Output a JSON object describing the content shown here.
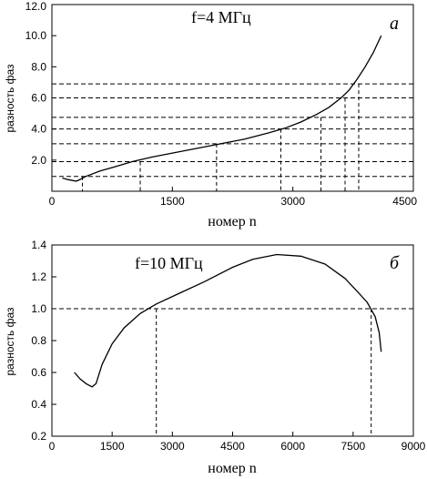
{
  "chart_data": [
    {
      "type": "line",
      "panel": "a",
      "annotation": "f=4 МГц",
      "xlabel": "номер n",
      "ylabel": "разность фаз",
      "xlim": [
        0,
        4500
      ],
      "ylim": [
        0.0,
        12.0
      ],
      "xticks": [
        0,
        1500,
        3000,
        4500
      ],
      "yticks": [
        2.0,
        4.0,
        6.0,
        8.0,
        10.0,
        12.0
      ],
      "ytick_labels": [
        "2.0",
        "4.0",
        "6.0",
        "8.0",
        "10.0",
        "12.0"
      ],
      "grid": false,
      "series": [
        {
          "x": [
            130,
            200,
            300,
            330,
            420,
            600,
            800,
            1000,
            1250,
            1500,
            1800,
            2100,
            2400,
            2700,
            2900,
            3100,
            3300,
            3450,
            3600,
            3700,
            3800,
            3900,
            4000,
            4100
          ],
          "y": [
            0.85,
            0.75,
            0.65,
            0.7,
            0.95,
            1.3,
            1.6,
            1.9,
            2.2,
            2.45,
            2.75,
            3.05,
            3.35,
            3.75,
            4.05,
            4.45,
            4.95,
            5.4,
            6.0,
            6.5,
            7.2,
            8.0,
            8.9,
            10.0
          ]
        }
      ],
      "h_guides": [
        0.95,
        1.9,
        3.05,
        4.0,
        4.75,
        6.0,
        6.9
      ],
      "v_guides": [
        {
          "x": 380,
          "y": 0.95
        },
        {
          "x": 1100,
          "y": 1.9
        },
        {
          "x": 2050,
          "y": 3.05
        },
        {
          "x": 2850,
          "y": 4.0
        },
        {
          "x": 3350,
          "y": 4.75
        },
        {
          "x": 3650,
          "y": 6.0
        },
        {
          "x": 3820,
          "y": 6.9
        }
      ]
    },
    {
      "type": "line",
      "panel": "б",
      "annotation": "f=10 МГц",
      "xlabel": "номер n",
      "ylabel": "разность фаз",
      "xlim": [
        0,
        9000
      ],
      "ylim": [
        0.2,
        1.4
      ],
      "xticks": [
        0,
        1500,
        3000,
        4500,
        6000,
        7500,
        9000
      ],
      "yticks": [
        0.2,
        0.4,
        0.6,
        0.8,
        1.0,
        1.2,
        1.4
      ],
      "ytick_labels": [
        "0.2",
        "0.4",
        "0.6",
        "0.8",
        "1.0",
        "1.2",
        "1.4"
      ],
      "grid": false,
      "series": [
        {
          "x": [
            560,
            700,
            850,
            1000,
            1100,
            1250,
            1500,
            1800,
            2200,
            2600,
            3200,
            3800,
            4500,
            5000,
            5600,
            6200,
            6800,
            7300,
            7600,
            7850,
            8050,
            8150,
            8200
          ],
          "y": [
            0.6,
            0.56,
            0.53,
            0.51,
            0.53,
            0.65,
            0.78,
            0.88,
            0.97,
            1.03,
            1.1,
            1.17,
            1.26,
            1.31,
            1.34,
            1.33,
            1.28,
            1.19,
            1.11,
            1.04,
            0.95,
            0.85,
            0.73
          ]
        }
      ],
      "h_guides": [
        1.0
      ],
      "v_guides": [
        {
          "x": 2600,
          "y": 1.0
        },
        {
          "x": 7950,
          "y": 1.0
        }
      ]
    }
  ]
}
